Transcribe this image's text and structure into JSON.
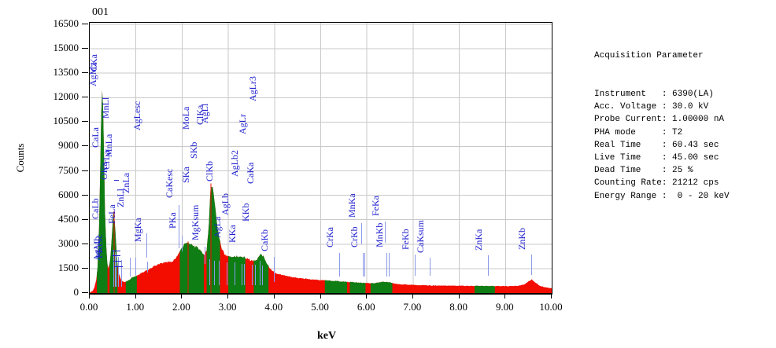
{
  "title": "001",
  "panel": {
    "title": "Acquisition Parameter",
    "rows": [
      {
        "label": "Instrument",
        "value": "6390(LA)"
      },
      {
        "label": "Acc. Voltage",
        "value": "30.0 kV"
      },
      {
        "label": "Probe Current",
        "value": "1.00000 nA"
      },
      {
        "label": "PHA mode",
        "value": "T2"
      },
      {
        "label": "Real Time",
        "value": "60.43 sec"
      },
      {
        "label": "Live Time",
        "value": "45.00 sec"
      },
      {
        "label": "Dead Time",
        "value": "25 %"
      },
      {
        "label": "Counting Rate",
        "value": "21212 cps"
      },
      {
        "label": "Energy Range",
        "value": " 0 - 20 keV"
      }
    ]
  },
  "chart_data": {
    "type": "area",
    "title": "001",
    "xlabel": "keV",
    "ylabel": "Counts",
    "xlim": [
      0,
      10
    ],
    "ylim": [
      0,
      16500
    ],
    "grid": true,
    "x_ticks": [
      "0.00",
      "1.00",
      "2.00",
      "3.00",
      "4.00",
      "5.00",
      "6.00",
      "7.00",
      "8.00",
      "9.00",
      "10.00"
    ],
    "y_ticks": [
      0,
      1500,
      3000,
      4500,
      6000,
      7500,
      9000,
      10500,
      12000,
      13500,
      15000,
      16500
    ],
    "series": [
      [
        0,
        20
      ],
      [
        0.06,
        120
      ],
      [
        0.1,
        350
      ],
      [
        0.14,
        800
      ],
      [
        0.17,
        1600
      ],
      [
        0.2,
        3800
      ],
      [
        0.23,
        8000
      ],
      [
        0.25,
        11300
      ],
      [
        0.27,
        12650
      ],
      [
        0.29,
        11500
      ],
      [
        0.31,
        8200
      ],
      [
        0.33,
        5000
      ],
      [
        0.36,
        2800
      ],
      [
        0.38,
        1900
      ],
      [
        0.4,
        1500
      ],
      [
        0.43,
        1800
      ],
      [
        0.46,
        2600
      ],
      [
        0.49,
        3900
      ],
      [
        0.52,
        5100
      ],
      [
        0.54,
        4500
      ],
      [
        0.57,
        3000
      ],
      [
        0.6,
        1800
      ],
      [
        0.63,
        1200
      ],
      [
        0.67,
        850
      ],
      [
        0.72,
        680
      ],
      [
        0.78,
        680
      ],
      [
        0.85,
        800
      ],
      [
        0.92,
        950
      ],
      [
        1.0,
        1050
      ],
      [
        1.1,
        1180
      ],
      [
        1.2,
        1320
      ],
      [
        1.32,
        1520
      ],
      [
        1.45,
        1720
      ],
      [
        1.55,
        1830
      ],
      [
        1.65,
        1900
      ],
      [
        1.75,
        1930
      ],
      [
        1.82,
        2000
      ],
      [
        1.9,
        2250
      ],
      [
        1.98,
        2700
      ],
      [
        2.06,
        3000
      ],
      [
        2.13,
        3150
      ],
      [
        2.2,
        3000
      ],
      [
        2.28,
        2850
      ],
      [
        2.35,
        2750
      ],
      [
        2.42,
        2550
      ],
      [
        2.48,
        2300
      ],
      [
        2.53,
        2600
      ],
      [
        2.58,
        4200
      ],
      [
        2.62,
        6600
      ],
      [
        2.66,
        6400
      ],
      [
        2.7,
        5600
      ],
      [
        2.75,
        4400
      ],
      [
        2.8,
        3400
      ],
      [
        2.86,
        2700
      ],
      [
        2.93,
        2350
      ],
      [
        3.0,
        2250
      ],
      [
        3.1,
        2200
      ],
      [
        3.2,
        2250
      ],
      [
        3.32,
        2200
      ],
      [
        3.42,
        2080
      ],
      [
        3.52,
        1980
      ],
      [
        3.62,
        2050
      ],
      [
        3.7,
        2400
      ],
      [
        3.76,
        2250
      ],
      [
        3.83,
        1850
      ],
      [
        3.9,
        1500
      ],
      [
        4.0,
        1250
      ],
      [
        4.15,
        1100
      ],
      [
        4.35,
        1000
      ],
      [
        4.6,
        900
      ],
      [
        4.85,
        830
      ],
      [
        5.1,
        780
      ],
      [
        5.4,
        720
      ],
      [
        5.7,
        660
      ],
      [
        6.0,
        610
      ],
      [
        6.2,
        610
      ],
      [
        6.35,
        690
      ],
      [
        6.45,
        670
      ],
      [
        6.6,
        570
      ],
      [
        6.8,
        520
      ],
      [
        7.05,
        490
      ],
      [
        7.4,
        465
      ],
      [
        7.8,
        450
      ],
      [
        8.2,
        440
      ],
      [
        8.6,
        430
      ],
      [
        9.0,
        420
      ],
      [
        9.25,
        430
      ],
      [
        9.4,
        520
      ],
      [
        9.5,
        720
      ],
      [
        9.57,
        830
      ],
      [
        9.65,
        650
      ],
      [
        9.75,
        430
      ],
      [
        9.88,
        330
      ],
      [
        10.0,
        300
      ]
    ],
    "green_ranges": [
      [
        0.155,
        0.385
      ],
      [
        0.43,
        0.6
      ],
      [
        0.78,
        1.02
      ],
      [
        1.95,
        2.47
      ],
      [
        2.53,
        2.82
      ],
      [
        3.0,
        3.37
      ],
      [
        3.55,
        3.87
      ],
      [
        5.09,
        5.57
      ],
      [
        5.63,
        5.97
      ],
      [
        6.08,
        6.55
      ],
      [
        8.33,
        8.77
      ]
    ],
    "cursor_lines": [
      0.525,
      2.13,
      2.62
    ],
    "peak_labels": [
      {
        "text": "AgMz",
        "x": 0.285,
        "base": 12650
      },
      {
        "text": "CKa",
        "x": 0.3,
        "base": 13550
      },
      {
        "text": "MnLl",
        "x": 0.556,
        "base": 10650
      },
      {
        "text": "CaLa",
        "x": 0.341,
        "base": 8900
      },
      {
        "text": "MnLa",
        "x": 0.637,
        "base": 8300
      },
      {
        "text": "OKa",
        "x": 0.525,
        "base": 6900
      },
      {
        "text": "CrLa",
        "x": 0.573,
        "base": 7550
      },
      {
        "text": "ZnLl",
        "x": 0.884,
        "base": 5200
      },
      {
        "text": "ZnLa",
        "x": 1.012,
        "base": 6100
      },
      {
        "text": "AgLesc",
        "x": 1.24,
        "base": 9950
      },
      {
        "text": "CaLb",
        "x": 0.345,
        "base": 4500
      },
      {
        "text": "FeLa",
        "x": 0.705,
        "base": 4200
      },
      {
        "text": "MgKa",
        "x": 1.254,
        "base": 3100
      },
      {
        "text": "AgMb",
        "x": 0.37,
        "base": 1950
      },
      {
        "text": "PKesc",
        "x": 0.43,
        "base": 2080
      },
      {
        "text": "CaKesc",
        "x": 1.95,
        "base": 5800
      },
      {
        "text": "PKa",
        "x": 2.013,
        "base": 3900
      },
      {
        "text": "MgKsum",
        "x": 2.51,
        "base": 3200
      },
      {
        "text": "SKa",
        "x": 2.307,
        "base": 6700
      },
      {
        "text": "SKb",
        "x": 2.464,
        "base": 8200
      },
      {
        "text": "MoLa",
        "x": 2.293,
        "base": 10000
      },
      {
        "text": "ClKa",
        "x": 2.6,
        "base": 10300
      },
      {
        "text": "AgLl",
        "x": 2.705,
        "base": 10350
      },
      {
        "text": "ClKb",
        "x": 2.815,
        "base": 6800
      },
      {
        "text": "AgLa",
        "x": 2.98,
        "base": 3350
      },
      {
        "text": "AgLb",
        "x": 3.15,
        "base": 4750
      },
      {
        "text": "KKa",
        "x": 3.31,
        "base": 3050
      },
      {
        "text": "AgLb2",
        "x": 3.35,
        "base": 7100
      },
      {
        "text": "AgLr",
        "x": 3.52,
        "base": 9700
      },
      {
        "text": "KKb",
        "x": 3.59,
        "base": 4350
      },
      {
        "text": "CaKa",
        "x": 3.69,
        "base": 6650
      },
      {
        "text": "AgLr3",
        "x": 3.75,
        "base": 11700
      },
      {
        "text": "CaKb",
        "x": 4.01,
        "base": 2500
      },
      {
        "text": "CrKa",
        "x": 5.41,
        "base": 2750
      },
      {
        "text": "MnKa",
        "x": 5.9,
        "base": 4600
      },
      {
        "text": "CrKb",
        "x": 5.95,
        "base": 2750
      },
      {
        "text": "FeKa",
        "x": 6.4,
        "base": 4700
      },
      {
        "text": "MnKb",
        "x": 6.49,
        "base": 2750
      },
      {
        "text": "FeKb",
        "x": 7.06,
        "base": 2600
      },
      {
        "text": "CaKsum",
        "x": 7.38,
        "base": 2400
      },
      {
        "text": "ZnKa",
        "x": 8.64,
        "base": 2550
      },
      {
        "text": "ZnKb",
        "x": 9.57,
        "base": 2600
      }
    ],
    "marker_lines": [
      [
        0.525,
        2600,
        350
      ],
      [
        0.556,
        2450,
        350
      ],
      [
        0.573,
        2300,
        350
      ],
      [
        0.637,
        2150,
        350
      ],
      [
        0.705,
        2000,
        350
      ],
      [
        0.884,
        2100,
        950
      ],
      [
        1.012,
        2100,
        1050
      ],
      [
        1.254,
        1900,
        1200
      ],
      [
        1.24,
        3600,
        2100
      ],
      [
        1.95,
        5350,
        2700
      ],
      [
        2.013,
        3450,
        2500
      ],
      [
        2.51,
        2800,
        1750
      ],
      [
        2.6,
        2050,
        420
      ],
      [
        2.705,
        1950,
        420
      ],
      [
        2.815,
        1950,
        420
      ],
      [
        2.98,
        1850,
        420
      ],
      [
        3.15,
        1850,
        420
      ],
      [
        3.31,
        1750,
        420
      ],
      [
        3.35,
        1750,
        420
      ],
      [
        3.52,
        1700,
        420
      ],
      [
        3.59,
        1700,
        420
      ],
      [
        3.69,
        1950,
        420
      ],
      [
        3.75,
        1650,
        420
      ],
      [
        4.01,
        2150,
        650
      ],
      [
        5.41,
        2400,
        950
      ],
      [
        5.9,
        4250,
        2950
      ],
      [
        5.93,
        2400,
        950
      ],
      [
        5.97,
        2400,
        950
      ],
      [
        6.4,
        4350,
        3050
      ],
      [
        6.44,
        2400,
        950
      ],
      [
        6.49,
        2400,
        950
      ],
      [
        7.06,
        2300,
        1000
      ],
      [
        7.38,
        2100,
        1000
      ],
      [
        8.64,
        2250,
        1000
      ],
      [
        9.57,
        2300,
        1050
      ]
    ],
    "marker_dashes": [
      [
        0.5,
        0.68,
        2550
      ],
      [
        0.5,
        0.68,
        2250
      ],
      [
        0.52,
        0.7,
        1950
      ],
      [
        0.55,
        0.73,
        1600
      ],
      [
        0.55,
        0.64,
        6900
      ]
    ],
    "colors": {
      "spectrum_red": "#f20d00",
      "roi_green": "#0e7e14",
      "label_blue": "#2020cf",
      "marker_blue": "#8b9ae8",
      "grid": "#c9c9c9",
      "axis": "#000000"
    }
  }
}
